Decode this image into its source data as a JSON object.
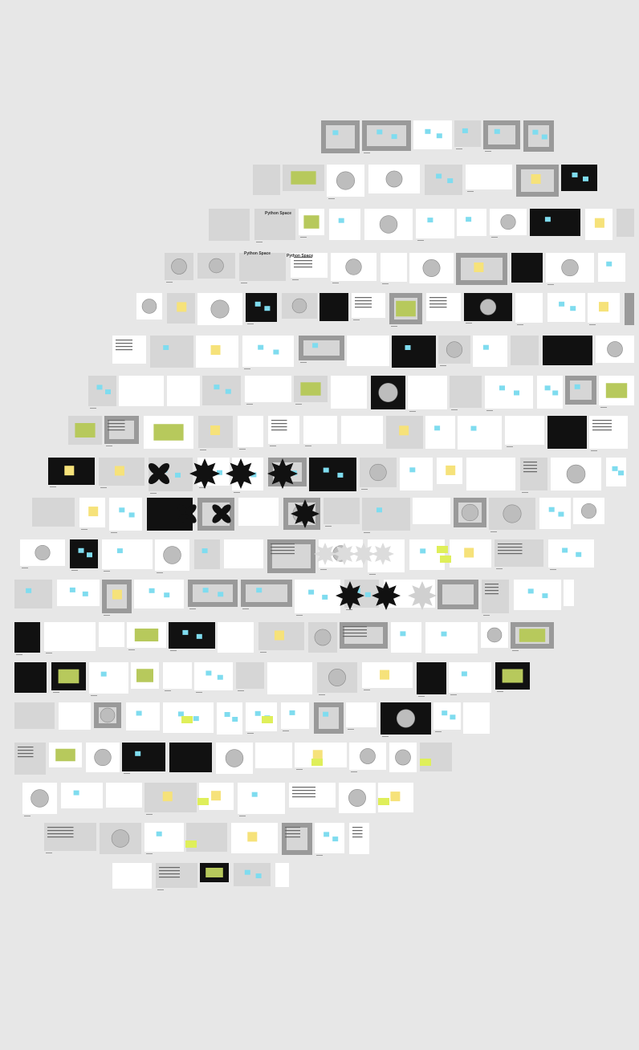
{
  "app": {
    "view": "canvas-overview"
  },
  "canvas": {
    "background": "#e7e7e7",
    "texts": {
      "python_space_1": "Python Space",
      "python_space_2": "Python Space",
      "python_space_3": "Python Space"
    }
  },
  "colors": {
    "white": "#ffffff",
    "black": "#111111",
    "dark": "#2b2b2b",
    "grey": "#9a9a9a",
    "light_grey": "#d6d6d6",
    "cyan_sticky": "#7fdcef",
    "yellow_sticky": "#f6e27a",
    "lime_sticky": "#dfef5a",
    "olive": "#b7c95c"
  },
  "icons": [
    "flower-shape-icon",
    "star-shape-icon",
    "lace-cross-icon",
    "pointer-icon"
  ]
}
